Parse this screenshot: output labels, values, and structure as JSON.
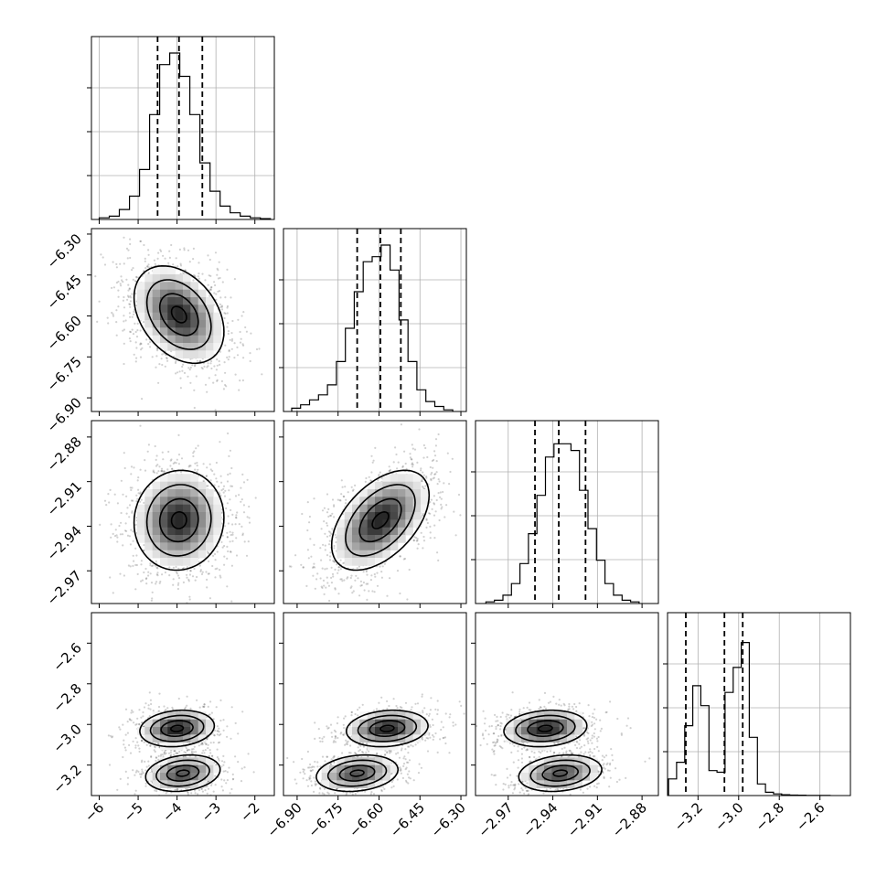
{
  "chart_data": {
    "type": "corner",
    "n_params": 4,
    "grid": true,
    "axes_ticks": [
      [
        -6,
        -5,
        -4,
        -3,
        -2
      ],
      [
        -6.9,
        -6.75,
        -6.6,
        -6.45,
        -6.3
      ],
      [
        -2.97,
        -2.94,
        -2.91,
        -2.88
      ],
      [
        -3.2,
        -3.0,
        -2.8,
        -2.6
      ]
    ],
    "axes_tick_labels": [
      [
        "−6",
        "−5",
        "−4",
        "−3",
        "−2"
      ],
      [
        "−6.90",
        "−6.75",
        "−6.60",
        "−6.45",
        "−6.30"
      ],
      [
        "−2.97",
        "−2.94",
        "−2.91",
        "−2.88"
      ],
      [
        "−3.2",
        "−3.0",
        "−2.8",
        "−2.6"
      ]
    ],
    "ranges": [
      [
        -6.2,
        -1.5
      ],
      [
        -6.95,
        -6.28
      ],
      [
        -2.992,
        -2.869
      ],
      [
        -3.35,
        -2.45
      ]
    ],
    "quantiles": [
      [
        -4.5,
        -3.95,
        -3.35
      ],
      [
        -6.68,
        -6.595,
        -6.52
      ],
      [
        -2.952,
        -2.936,
        -2.918
      ],
      [
        -3.26,
        -3.07,
        -2.98
      ]
    ],
    "histograms": [
      {
        "edges_range": [
          -6.0,
          -1.6
        ],
        "counts": [
          1,
          2,
          6,
          14,
          30,
          63,
          93,
          100,
          86,
          63,
          34,
          17,
          8,
          4,
          2,
          1,
          0.5
        ]
      },
      {
        "edges_range": [
          -6.92,
          -6.33
        ],
        "counts": [
          2,
          4,
          7,
          10,
          16,
          30,
          50,
          72,
          90,
          93,
          100,
          85,
          55,
          30,
          13,
          6,
          3,
          1
        ]
      },
      {
        "edges_range": [
          -2.985,
          -2.882
        ],
        "counts": [
          1,
          2,
          5,
          12,
          24,
          42,
          65,
          88,
          96,
          96,
          92,
          68,
          45,
          26,
          12,
          5,
          2,
          1
        ]
      },
      {
        "edges_range": [
          -3.345,
          -2.55
        ],
        "counts": [
          10,
          20,
          42,
          66,
          54,
          15,
          14,
          62,
          77,
          92,
          35,
          7,
          2,
          1,
          0.5,
          0.3,
          0.2,
          0.1,
          0.1,
          0.1
        ]
      }
    ]
  }
}
